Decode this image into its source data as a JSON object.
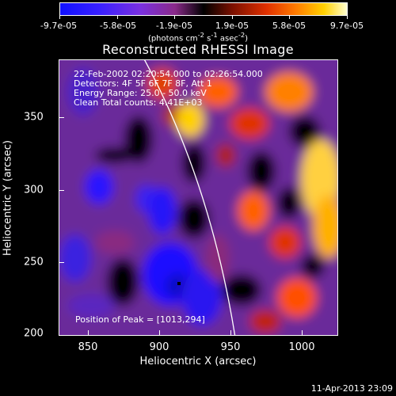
{
  "colorbar": {
    "tick_labels": [
      "-9.7e-05",
      "-5.8e-05",
      "-1.9e-05",
      "1.9e-05",
      "5.8e-05",
      "9.7e-05"
    ],
    "units_prefix": "(photons cm",
    "units_exp1": "-2",
    "units_mid1": " s",
    "units_exp2": "-1",
    "units_mid2": " asec",
    "units_exp3": "-2",
    "units_suffix": ")"
  },
  "plot": {
    "title": "Reconstructed RHESSI Image",
    "annotations": {
      "line1": "22-Feb-2002 02:20:54.000 to 02:26:54.000",
      "line2": "Detectors: 4F 5F 6F 7F 8F, Att 1",
      "line3": "Energy Range: 25.0 - 50.0 keV",
      "line4": "Clean    Total counts: 4.41E+03",
      "peak": "Position of Peak = [1013,294]"
    },
    "xlabel": "Heliocentric X (arcsec)",
    "ylabel": "Heliocentric Y (arcsec)",
    "x_ticks": [
      "850",
      "900",
      "950",
      "1000"
    ],
    "y_ticks": [
      "350",
      "300",
      "250",
      "200"
    ]
  },
  "timestamp": "11-Apr-2013 23:09",
  "chart_data": {
    "type": "heatmap",
    "title": "Reconstructed RHESSI Image",
    "xlabel": "Heliocentric X (arcsec)",
    "ylabel": "Heliocentric Y (arcsec)",
    "xlim": [
      828,
      1024
    ],
    "ylim": [
      197,
      390
    ],
    "colorbar_range": [
      -9.7e-05,
      9.7e-05
    ],
    "peak": [
      1013,
      294
    ]
  }
}
